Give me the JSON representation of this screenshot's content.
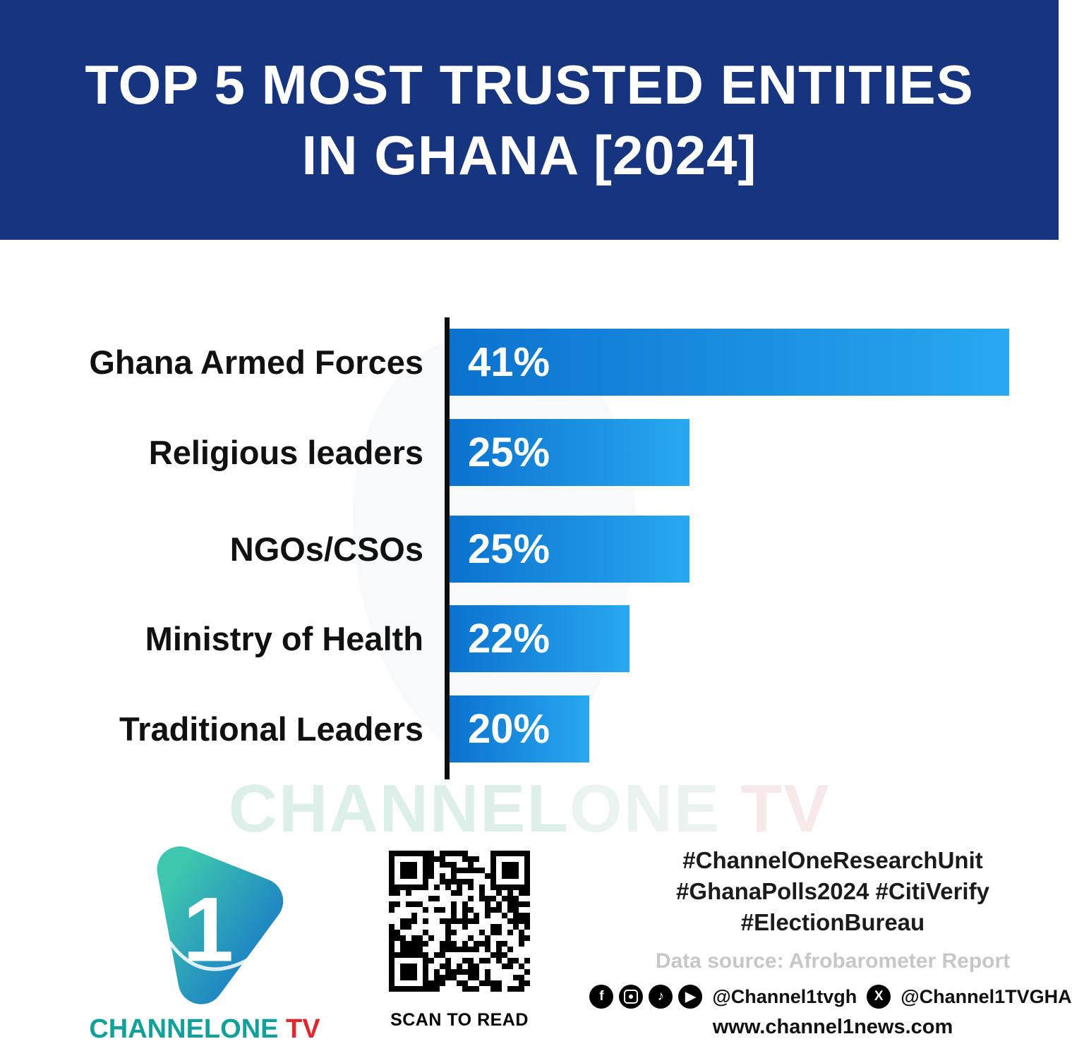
{
  "header": {
    "title_line1": "TOP 5 MOST TRUSTED ENTITIES",
    "title_line2": "IN GHANA [2024]"
  },
  "chart_data": {
    "type": "bar",
    "orientation": "horizontal",
    "title": "TOP 5 MOST TRUSTED ENTITIES IN GHANA [2024]",
    "categories": [
      "Ghana Armed Forces",
      "Religious leaders",
      "NGOs/CSOs",
      "Ministry of Health",
      "Traditional Leaders"
    ],
    "values": [
      41,
      25,
      25,
      22,
      20
    ],
    "value_labels": [
      "41%",
      "25%",
      "25%",
      "22%",
      "20%"
    ],
    "xlabel": "",
    "ylabel": "",
    "xlim": [
      13,
      42
    ],
    "grid": false,
    "legend": false,
    "bar_color_start": "#0B72CE",
    "bar_color_end": "#29A8F0"
  },
  "watermark": {
    "part1": "CHANNEL",
    "part2": "ONE",
    "part3": " TV"
  },
  "footer": {
    "logo_digit": "1",
    "brand_part1": "CHANNEL",
    "brand_part2": "ONE",
    "brand_part3": " TV",
    "qr_caption": "SCAN TO READ",
    "hashtags_line1": "#ChannelOneResearchUnit",
    "hashtags_line2": "#GhanaPolls2024 #CitiVerify",
    "hashtags_line3": "#ElectionBureau",
    "data_source": "Data source: Afrobarometer Report",
    "social_handle_1": "@Channel1tvgh",
    "social_handle_2": "@Channel1TVGHA",
    "website": "www.channel1news.com",
    "icons": {
      "facebook": "f",
      "instagram": "instagram-camera",
      "tiktok": "♪",
      "youtube": "▶",
      "x": "X"
    }
  },
  "colors": {
    "header_bg": "#17357E",
    "axis": "#0d0d0d",
    "brand_teal": "#12A19A",
    "brand_red": "#E4252C",
    "data_source_gray": "#c7c7c7"
  }
}
